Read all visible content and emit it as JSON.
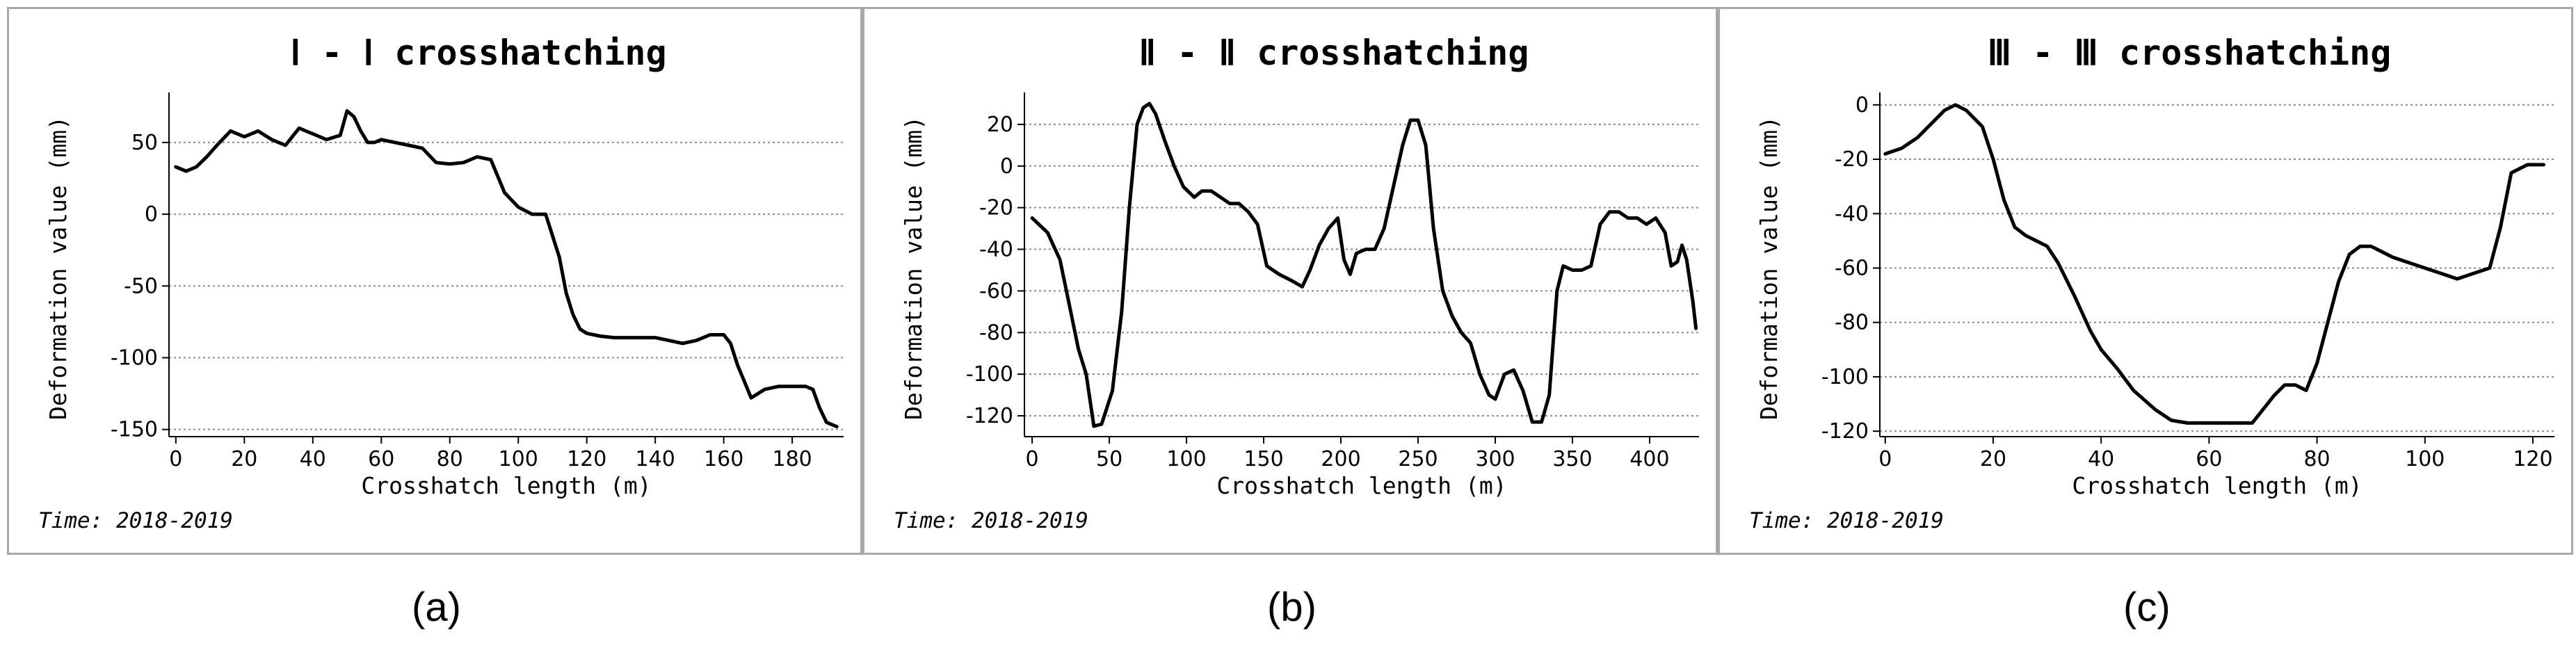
{
  "captions": [
    "(a)",
    "(b)",
    "(c)"
  ],
  "time_label": "Time: 2018-2019",
  "chart_data": [
    {
      "type": "line",
      "title": "Ⅰ - Ⅰ crosshatching",
      "xlabel": "Crosshatch length (m)",
      "ylabel": "Deformation value (mm)",
      "xlim": [
        -2,
        195
      ],
      "ylim": [
        -155,
        80
      ],
      "xticks": [
        0,
        20,
        40,
        60,
        80,
        100,
        120,
        140,
        160,
        180
      ],
      "yticks": [
        50,
        0,
        -50,
        -100,
        -150
      ],
      "grid": "horizontal dotted",
      "x": [
        0,
        3,
        6,
        9,
        12,
        16,
        20,
        24,
        28,
        32,
        36,
        40,
        44,
        48,
        50,
        52,
        54,
        56,
        58,
        60,
        64,
        68,
        72,
        76,
        80,
        84,
        88,
        92,
        96,
        100,
        104,
        108,
        112,
        114,
        116,
        118,
        120,
        124,
        128,
        132,
        136,
        140,
        144,
        148,
        152,
        156,
        160,
        162,
        164,
        168,
        172,
        176,
        180,
        184,
        186,
        188,
        190,
        193
      ],
      "y": [
        33,
        30,
        33,
        40,
        48,
        58,
        54,
        58,
        52,
        48,
        60,
        56,
        52,
        55,
        72,
        68,
        58,
        50,
        50,
        52,
        50,
        48,
        46,
        36,
        35,
        36,
        40,
        38,
        15,
        5,
        0,
        0,
        -30,
        -55,
        -70,
        -80,
        -83,
        -85,
        -86,
        -86,
        -86,
        -86,
        -88,
        -90,
        -88,
        -84,
        -84,
        -90,
        -105,
        -128,
        -122,
        -120,
        -120,
        -120,
        -122,
        -135,
        -145,
        -148
      ]
    },
    {
      "type": "line",
      "title": "Ⅱ - Ⅱ crosshatching",
      "xlabel": "Crosshatch length (m)",
      "ylabel": "Deformation value (mm)",
      "xlim": [
        -5,
        432
      ],
      "ylim": [
        -130,
        32
      ],
      "xticks": [
        0,
        50,
        100,
        150,
        200,
        250,
        300,
        350,
        400
      ],
      "yticks": [
        20,
        0,
        -20,
        -40,
        -60,
        -80,
        -100,
        -120
      ],
      "grid": "horizontal dotted",
      "x": [
        0,
        10,
        18,
        25,
        30,
        35,
        40,
        45,
        52,
        58,
        63,
        68,
        72,
        76,
        80,
        86,
        92,
        98,
        105,
        110,
        116,
        122,
        128,
        134,
        140,
        146,
        152,
        160,
        168,
        175,
        180,
        186,
        192,
        198,
        202,
        206,
        210,
        216,
        222,
        228,
        234,
        240,
        245,
        250,
        255,
        260,
        266,
        272,
        278,
        284,
        290,
        296,
        300,
        306,
        312,
        318,
        324,
        330,
        335,
        340,
        344,
        350,
        356,
        362,
        368,
        374,
        380,
        386,
        392,
        398,
        404,
        410,
        414,
        418,
        421,
        424,
        426,
        428,
        430
      ],
      "y": [
        -25,
        -32,
        -45,
        -70,
        -88,
        -100,
        -125,
        -124,
        -108,
        -70,
        -20,
        20,
        28,
        30,
        25,
        12,
        0,
        -10,
        -15,
        -12,
        -12,
        -15,
        -18,
        -18,
        -22,
        -28,
        -48,
        -52,
        -55,
        -58,
        -50,
        -38,
        -30,
        -25,
        -45,
        -52,
        -42,
        -40,
        -40,
        -30,
        -10,
        10,
        22,
        22,
        10,
        -30,
        -60,
        -72,
        -80,
        -85,
        -100,
        -110,
        -112,
        -100,
        -98,
        -108,
        -123,
        -123,
        -110,
        -60,
        -48,
        -50,
        -50,
        -48,
        -28,
        -22,
        -22,
        -25,
        -25,
        -28,
        -25,
        -32,
        -48,
        -46,
        -38,
        -45,
        -55,
        -65,
        -78
      ]
    },
    {
      "type": "line",
      "title": "Ⅲ - Ⅲ crosshatching",
      "xlabel": "Crosshatch length (m)",
      "ylabel": "Deformation value (mm)",
      "xlim": [
        -1,
        124
      ],
      "ylim": [
        -122,
        2
      ],
      "xticks": [
        0,
        20,
        40,
        60,
        80,
        100,
        120
      ],
      "yticks": [
        0,
        -20,
        -40,
        -60,
        -80,
        -100,
        -120
      ],
      "grid": "horizontal dotted",
      "x": [
        0,
        3,
        6,
        9,
        11,
        13,
        15,
        18,
        20,
        22,
        24,
        26,
        28,
        30,
        32,
        35,
        38,
        40,
        43,
        46,
        50,
        53,
        56,
        60,
        64,
        68,
        70,
        72,
        74,
        76,
        78,
        80,
        82,
        84,
        86,
        88,
        90,
        92,
        94,
        97,
        100,
        103,
        106,
        109,
        112,
        114,
        116,
        119,
        122
      ],
      "y": [
        -18,
        -16,
        -12,
        -6,
        -2,
        0,
        -2,
        -8,
        -20,
        -35,
        -45,
        -48,
        -50,
        -52,
        -58,
        -70,
        -83,
        -90,
        -97,
        -105,
        -112,
        -116,
        -117,
        -117,
        -117,
        -117,
        -112,
        -107,
        -103,
        -103,
        -105,
        -95,
        -80,
        -65,
        -55,
        -52,
        -52,
        -54,
        -56,
        -58,
        -60,
        -62,
        -64,
        -62,
        -60,
        -45,
        -25,
        -22,
        -22
      ]
    }
  ]
}
